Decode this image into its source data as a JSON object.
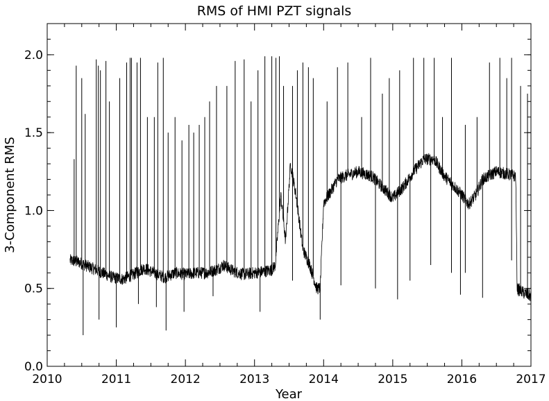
{
  "chart_data": {
    "type": "line",
    "title": "RMS of HMI PZT signals",
    "xlabel": "Year",
    "ylabel": "3-Component RMS",
    "xlim": [
      2010,
      2017
    ],
    "ylim": [
      0.0,
      2.2
    ],
    "xticks": [
      2010,
      2011,
      2012,
      2013,
      2014,
      2015,
      2016,
      2017
    ],
    "xtick_labels": [
      "2010",
      "2011",
      "2012",
      "2013",
      "2014",
      "2015",
      "2016",
      "2017"
    ],
    "yticks": [
      0.0,
      0.5,
      1.0,
      1.5,
      2.0
    ],
    "ytick_labels": [
      "0.0",
      "0.5",
      "1.0",
      "1.5",
      "2.0"
    ],
    "grid": false,
    "series": [
      {
        "color": "#000000",
        "baseline": {
          "x": [
            2010.33,
            2010.45,
            2010.6,
            2010.7,
            2010.8,
            2010.95,
            2011.1,
            2011.25,
            2011.4,
            2011.55,
            2011.7,
            2011.85,
            2012.0,
            2012.15,
            2012.3,
            2012.45,
            2012.55,
            2012.7,
            2012.85,
            2013.0,
            2013.15,
            2013.25,
            2013.3,
            2013.38,
            2013.45,
            2013.52,
            2013.6,
            2013.7,
            2013.8,
            2013.9,
            2013.95,
            2014.0,
            2014.1,
            2014.2,
            2014.3,
            2014.5,
            2014.7,
            2014.85,
            2015.0,
            2015.15,
            2015.3,
            2015.45,
            2015.6,
            2015.75,
            2015.9,
            2016.0,
            2016.1,
            2016.2,
            2016.3,
            2016.5,
            2016.7,
            2016.78,
            2016.8,
            2016.9,
            2017.0
          ],
          "y": [
            0.68,
            0.67,
            0.64,
            0.62,
            0.6,
            0.57,
            0.56,
            0.59,
            0.63,
            0.6,
            0.57,
            0.6,
            0.59,
            0.6,
            0.6,
            0.62,
            0.65,
            0.61,
            0.59,
            0.6,
            0.61,
            0.62,
            0.65,
            1.1,
            0.8,
            1.3,
            1.1,
            0.75,
            0.65,
            0.5,
            0.5,
            1.05,
            1.12,
            1.2,
            1.22,
            1.25,
            1.22,
            1.15,
            1.08,
            1.15,
            1.25,
            1.33,
            1.33,
            1.22,
            1.15,
            1.1,
            1.04,
            1.1,
            1.2,
            1.25,
            1.23,
            1.22,
            0.5,
            0.47,
            0.45
          ]
        },
        "noise_amplitude": 0.04,
        "spikes_up": {
          "x": [
            2010.39,
            2010.42,
            2010.5,
            2010.55,
            2010.71,
            2010.74,
            2010.77,
            2010.85,
            2010.9,
            2011.05,
            2011.15,
            2011.2,
            2011.22,
            2011.3,
            2011.35,
            2011.45,
            2011.55,
            2011.6,
            2011.68,
            2011.75,
            2011.85,
            2011.95,
            2012.05,
            2012.12,
            2012.2,
            2012.28,
            2012.35,
            2012.45,
            2012.6,
            2012.72,
            2012.85,
            2012.95,
            2013.05,
            2013.15,
            2013.25,
            2013.31,
            2013.36,
            2013.42,
            2013.55,
            2013.62,
            2013.7,
            2013.78,
            2013.85,
            2014.05,
            2014.2,
            2014.35,
            2014.55,
            2014.68,
            2014.85,
            2014.95,
            2015.1,
            2015.3,
            2015.45,
            2015.6,
            2015.72,
            2015.85,
            2016.05,
            2016.22,
            2016.4,
            2016.55,
            2016.65,
            2016.72,
            2016.85,
            2016.95
          ],
          "y": [
            1.33,
            1.93,
            1.85,
            1.62,
            1.97,
            1.93,
            1.9,
            1.96,
            1.7,
            1.85,
            1.95,
            1.98,
            1.98,
            1.95,
            1.98,
            1.6,
            1.6,
            1.95,
            1.98,
            1.5,
            1.6,
            1.45,
            1.55,
            1.5,
            1.55,
            1.6,
            1.7,
            1.8,
            1.8,
            1.96,
            1.97,
            1.7,
            1.9,
            1.99,
            1.99,
            1.98,
            1.99,
            1.8,
            1.8,
            1.9,
            1.95,
            1.92,
            1.85,
            1.7,
            1.92,
            1.95,
            1.6,
            1.98,
            1.75,
            1.85,
            1.9,
            1.98,
            1.98,
            1.98,
            1.6,
            1.98,
            1.55,
            1.6,
            1.95,
            1.98,
            1.85,
            1.98,
            1.8,
            1.75
          ]
        },
        "spikes_down": {
          "x": [
            2010.52,
            2010.75,
            2011.0,
            2011.32,
            2011.58,
            2011.72,
            2011.98,
            2012.4,
            2013.08,
            2013.55,
            2013.95,
            2014.25,
            2014.75,
            2015.07,
            2015.25,
            2015.55,
            2015.85,
            2015.98,
            2016.05,
            2016.3,
            2016.72,
            2016.82
          ],
          "y": [
            0.2,
            0.3,
            0.25,
            0.4,
            0.38,
            0.23,
            0.35,
            0.45,
            0.35,
            0.55,
            0.3,
            0.52,
            0.5,
            0.43,
            0.55,
            0.65,
            0.6,
            0.46,
            0.6,
            0.44,
            0.68,
            0.45
          ]
        }
      }
    ]
  }
}
